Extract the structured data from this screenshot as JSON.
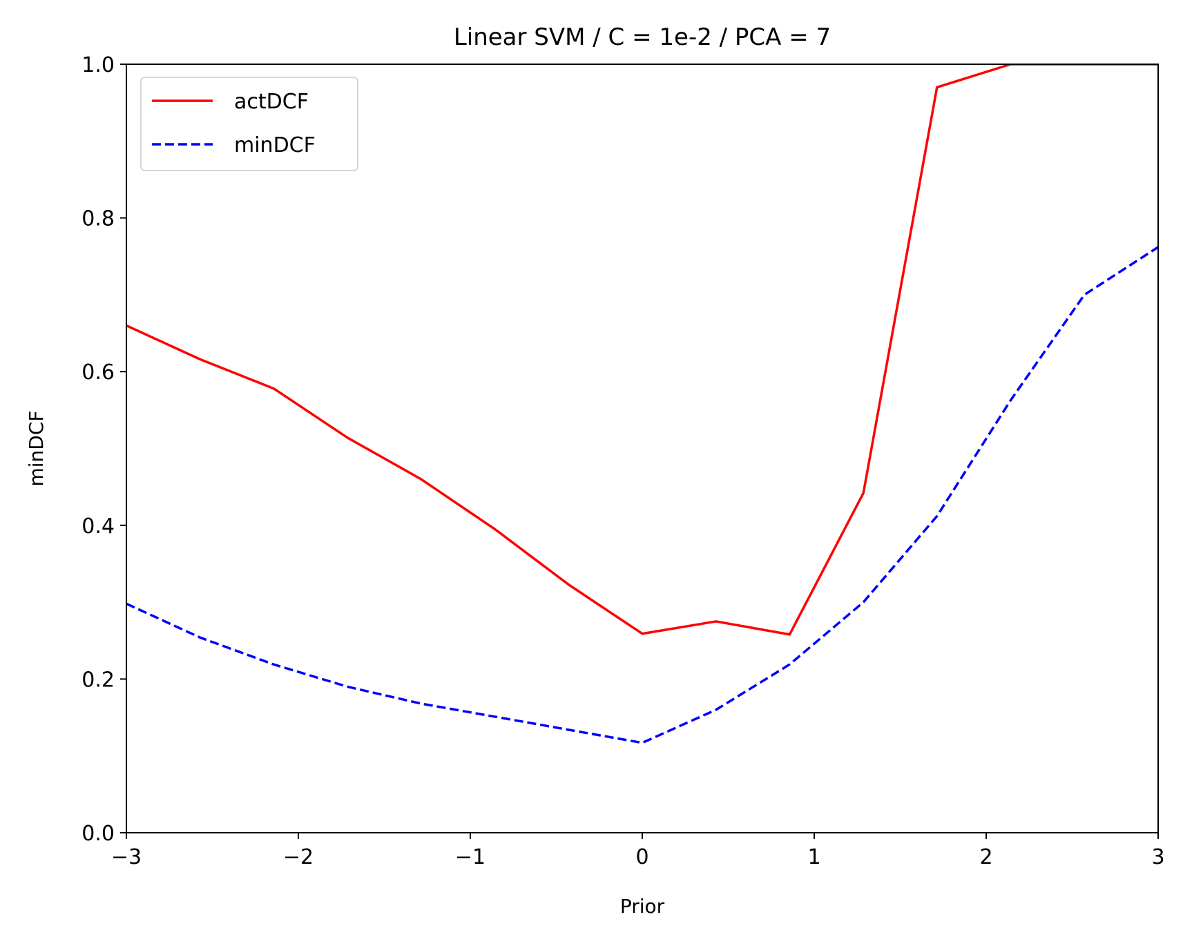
{
  "chart_data": {
    "type": "line",
    "title": "Linear SVM / C = 1e-2 / PCA = 7",
    "xlabel": "Prior",
    "ylabel": "minDCF",
    "xlim": [
      -3,
      3
    ],
    "ylim": [
      0.0,
      1.0
    ],
    "xticks": [
      -3,
      -2,
      -1,
      0,
      1,
      2,
      3
    ],
    "xtick_labels": [
      "−3",
      "−2",
      "−1",
      "0",
      "1",
      "2",
      "3"
    ],
    "yticks": [
      0.0,
      0.2,
      0.4,
      0.6,
      0.8,
      1.0
    ],
    "ytick_labels": [
      "0.0",
      "0.2",
      "0.4",
      "0.6",
      "0.8",
      "1.0"
    ],
    "grid": false,
    "legend_position": "upper-left",
    "x": [
      -3.0,
      -2.571,
      -2.143,
      -1.714,
      -1.286,
      -0.857,
      -0.429,
      0.0,
      0.429,
      0.857,
      1.286,
      1.714,
      2.143,
      2.571,
      3.0
    ],
    "series": [
      {
        "name": "actDCF",
        "color": "#ff0000",
        "linestyle": "solid",
        "values": [
          0.66,
          0.616,
          0.578,
          0.514,
          0.46,
          0.395,
          0.323,
          0.259,
          0.275,
          0.258,
          0.442,
          0.97,
          1.0,
          1.0,
          1.0
        ]
      },
      {
        "name": "minDCF",
        "color": "#0000ff",
        "linestyle": "dashed",
        "values": [
          0.298,
          0.254,
          0.219,
          0.19,
          0.168,
          0.151,
          0.134,
          0.117,
          0.16,
          0.219,
          0.3,
          0.412,
          0.563,
          0.7,
          0.762
        ]
      }
    ]
  }
}
